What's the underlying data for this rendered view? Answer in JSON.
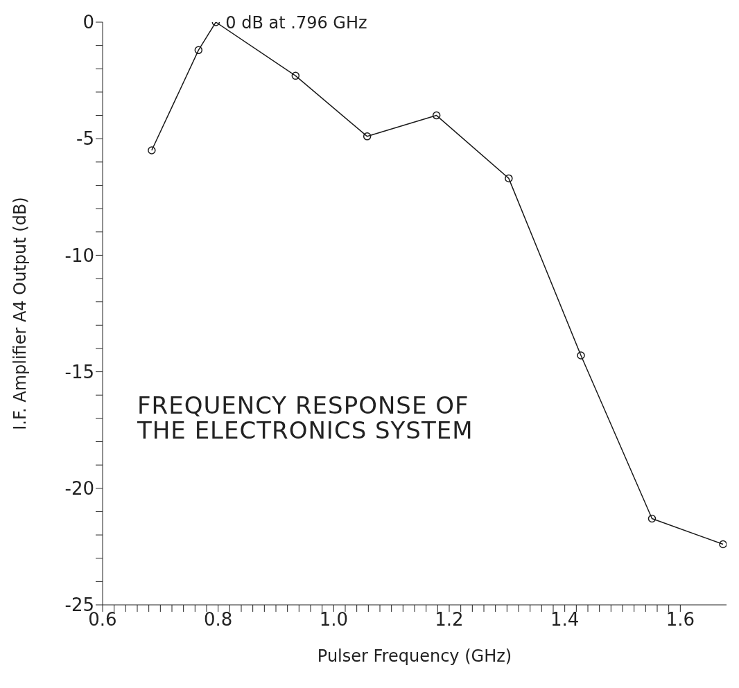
{
  "chart_data": {
    "type": "line",
    "xlabel": "Pulser Frequency (GHz)",
    "ylabel": "I.F. Amplifier A4 Output (dB)",
    "annotations": [
      {
        "text": "0 dB at .796 GHz",
        "x": 0.796,
        "y": 0
      },
      "FREQUENCY RESPONSE OF\nTHE ELECTRONICS SYSTEM"
    ],
    "x": [
      0.685,
      0.766,
      0.796,
      0.934,
      1.058,
      1.178,
      1.303,
      1.428,
      1.551,
      1.674
    ],
    "series": [
      {
        "color": "#1a1a1a",
        "values": [
          -5.5,
          -1.2,
          0,
          -2.3,
          -4.9,
          -4.0,
          -6.7,
          -14.3,
          -21.3,
          -22.4
        ]
      }
    ],
    "xlim": [
      0.6,
      1.68
    ],
    "xticks": [
      {
        "value": 0.6,
        "label": "0.6"
      },
      {
        "value": 0.62,
        "label": null
      },
      {
        "value": 0.64,
        "label": null
      },
      {
        "value": 0.66,
        "label": null
      },
      {
        "value": 0.68,
        "label": null
      },
      {
        "value": 0.7,
        "label": null
      },
      {
        "value": 0.72,
        "label": null
      },
      {
        "value": 0.74,
        "label": null
      },
      {
        "value": 0.76,
        "label": null
      },
      {
        "value": 0.78,
        "label": null
      },
      {
        "value": 0.8,
        "label": "0.8"
      },
      {
        "value": 0.82,
        "label": null
      },
      {
        "value": 0.84,
        "label": null
      },
      {
        "value": 0.86,
        "label": null
      },
      {
        "value": 0.88,
        "label": null
      },
      {
        "value": 0.9,
        "label": null
      },
      {
        "value": 0.92,
        "label": null
      },
      {
        "value": 0.94,
        "label": null
      },
      {
        "value": 0.96,
        "label": null
      },
      {
        "value": 0.98,
        "label": null
      },
      {
        "value": 1.0,
        "label": "1.0"
      },
      {
        "value": 1.02,
        "label": null
      },
      {
        "value": 1.04,
        "label": null
      },
      {
        "value": 1.06,
        "label": null
      },
      {
        "value": 1.08,
        "label": null
      },
      {
        "value": 1.1,
        "label": null
      },
      {
        "value": 1.12,
        "label": null
      },
      {
        "value": 1.14,
        "label": null
      },
      {
        "value": 1.16,
        "label": null
      },
      {
        "value": 1.18,
        "label": null
      },
      {
        "value": 1.2,
        "label": "1.2"
      },
      {
        "value": 1.22,
        "label": null
      },
      {
        "value": 1.24,
        "label": null
      },
      {
        "value": 1.26,
        "label": null
      },
      {
        "value": 1.28,
        "label": null
      },
      {
        "value": 1.3,
        "label": null
      },
      {
        "value": 1.32,
        "label": null
      },
      {
        "value": 1.34,
        "label": null
      },
      {
        "value": 1.36,
        "label": null
      },
      {
        "value": 1.38,
        "label": null
      },
      {
        "value": 1.4,
        "label": "1.4"
      },
      {
        "value": 1.42,
        "label": null
      },
      {
        "value": 1.44,
        "label": null
      },
      {
        "value": 1.46,
        "label": null
      },
      {
        "value": 1.48,
        "label": null
      },
      {
        "value": 1.5,
        "label": null
      },
      {
        "value": 1.52,
        "label": null
      },
      {
        "value": 1.54,
        "label": null
      },
      {
        "value": 1.56,
        "label": null
      },
      {
        "value": 1.58,
        "label": null
      },
      {
        "value": 1.6,
        "label": "1.6"
      }
    ],
    "ylim": [
      -25,
      0
    ],
    "yticks": [
      -25,
      {
        "value": -24,
        "label": null
      },
      {
        "value": -23,
        "label": null
      },
      {
        "value": -22,
        "label": null
      },
      {
        "value": -21,
        "label": null
      },
      -20,
      {
        "value": -19,
        "label": null
      },
      {
        "value": -18,
        "label": null
      },
      {
        "value": -17,
        "label": null
      },
      {
        "value": -16,
        "label": null
      },
      -15,
      {
        "value": -14,
        "label": null
      },
      {
        "value": -13,
        "label": null
      },
      {
        "value": -12,
        "label": null
      },
      {
        "value": -11,
        "label": null
      },
      -10,
      {
        "value": -9,
        "label": null
      },
      {
        "value": -8,
        "label": null
      },
      {
        "value": -7,
        "label": null
      },
      {
        "value": -6,
        "label": null
      },
      -5,
      {
        "value": -4,
        "label": null
      },
      {
        "value": -3,
        "label": null
      },
      {
        "value": -2,
        "label": null
      },
      {
        "value": -1,
        "label": null
      },
      0
    ],
    "marker": "circle",
    "line_style": "solid"
  }
}
